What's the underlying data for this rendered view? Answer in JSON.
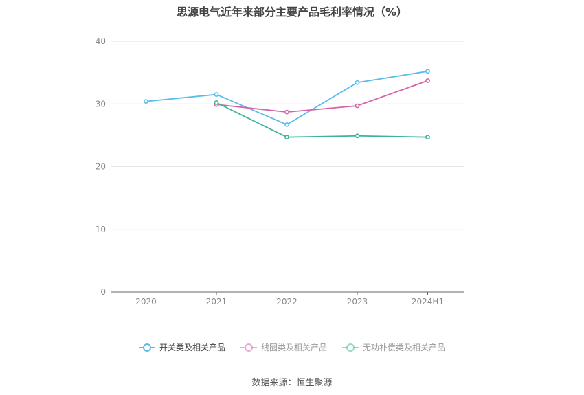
{
  "chart_data": {
    "type": "line",
    "title": "思源电气近年来部分主要产品毛利率情况（%）",
    "categories": [
      "2020",
      "2021",
      "2022",
      "2023",
      "2024H1"
    ],
    "ylim": [
      0,
      40
    ],
    "yticks": [
      0,
      10,
      20,
      30,
      40
    ],
    "grid": true,
    "legend_position": "bottom",
    "series": [
      {
        "name": "开关类及相关产品",
        "color": "#5bbcea",
        "values": [
          30.4,
          31.5,
          26.7,
          33.4,
          35.2
        ],
        "active": true
      },
      {
        "name": "线圈类及相关产品",
        "color": "#d563aa",
        "values": [
          null,
          29.9,
          28.7,
          29.7,
          33.7
        ],
        "active": false
      },
      {
        "name": "无功补偿类及相关产品",
        "color": "#3fb39a",
        "values": [
          null,
          30.2,
          24.7,
          24.9,
          24.7
        ],
        "active": false
      }
    ],
    "source": "数据来源：恒生聚源"
  }
}
